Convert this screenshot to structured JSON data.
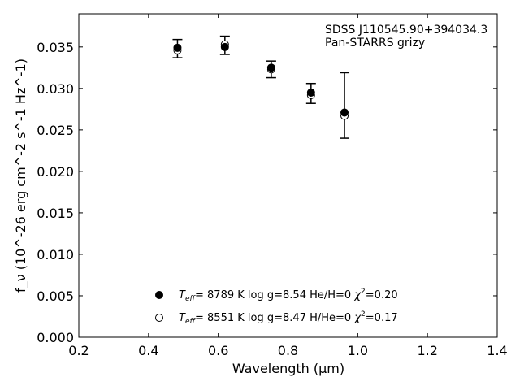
{
  "chart_data": {
    "type": "scatter",
    "title": "",
    "annotation_lines": [
      "SDSS J110545.90+394034.3",
      "Pan-STARRS grizy"
    ],
    "xlabel": "Wavelength (μm)",
    "ylabel": "f_ν (10^-26 erg cm^-2 s^-1 Hz^-1)",
    "xlim": [
      0.2,
      1.4
    ],
    "ylim": [
      0.0,
      0.039
    ],
    "xticks": [
      0.2,
      0.4,
      0.6,
      0.8,
      1.0,
      1.2,
      1.4
    ],
    "xtick_labels": [
      "0.2",
      "0.4",
      "0.6",
      "0.8",
      "1.0",
      "1.2",
      "1.4"
    ],
    "yticks": [
      0.0,
      0.005,
      0.01,
      0.015,
      0.02,
      0.025,
      0.03,
      0.035
    ],
    "ytick_labels": [
      "0.000",
      "0.005",
      "0.010",
      "0.015",
      "0.020",
      "0.025",
      "0.030",
      "0.035"
    ],
    "grid": false,
    "legend_position": "bottom-center",
    "observed": {
      "x": [
        0.483,
        0.619,
        0.752,
        0.866,
        0.962
      ],
      "y": [
        0.0348,
        0.0352,
        0.0323,
        0.0294,
        0.028
      ],
      "yerr_low": [
        0.0011,
        0.0011,
        0.001,
        0.0012,
        0.004
      ],
      "yerr_high": [
        0.0011,
        0.0011,
        0.001,
        0.0012,
        0.0039
      ]
    },
    "series": [
      {
        "name": "He/H=0 model",
        "marker": "filled",
        "x": [
          0.483,
          0.619,
          0.752,
          0.866,
          0.962
        ],
        "y": [
          0.0349,
          0.035,
          0.0325,
          0.0295,
          0.0271
        ]
      },
      {
        "name": "H/He=0 model",
        "marker": "open",
        "x": [
          0.483,
          0.619,
          0.752,
          0.866,
          0.962
        ],
        "y": [
          0.0346,
          0.0353,
          0.0323,
          0.0292,
          0.0267
        ]
      }
    ],
    "legend": [
      {
        "teff": "8789 K",
        "logg": "log g=8.54",
        "comp": "He/H=0",
        "chi": "=0.20",
        "marker": "filled"
      },
      {
        "teff": "8551 K",
        "logg": "log g=8.47",
        "comp": "H/He=0",
        "chi": "=0.17",
        "marker": "open"
      }
    ]
  }
}
